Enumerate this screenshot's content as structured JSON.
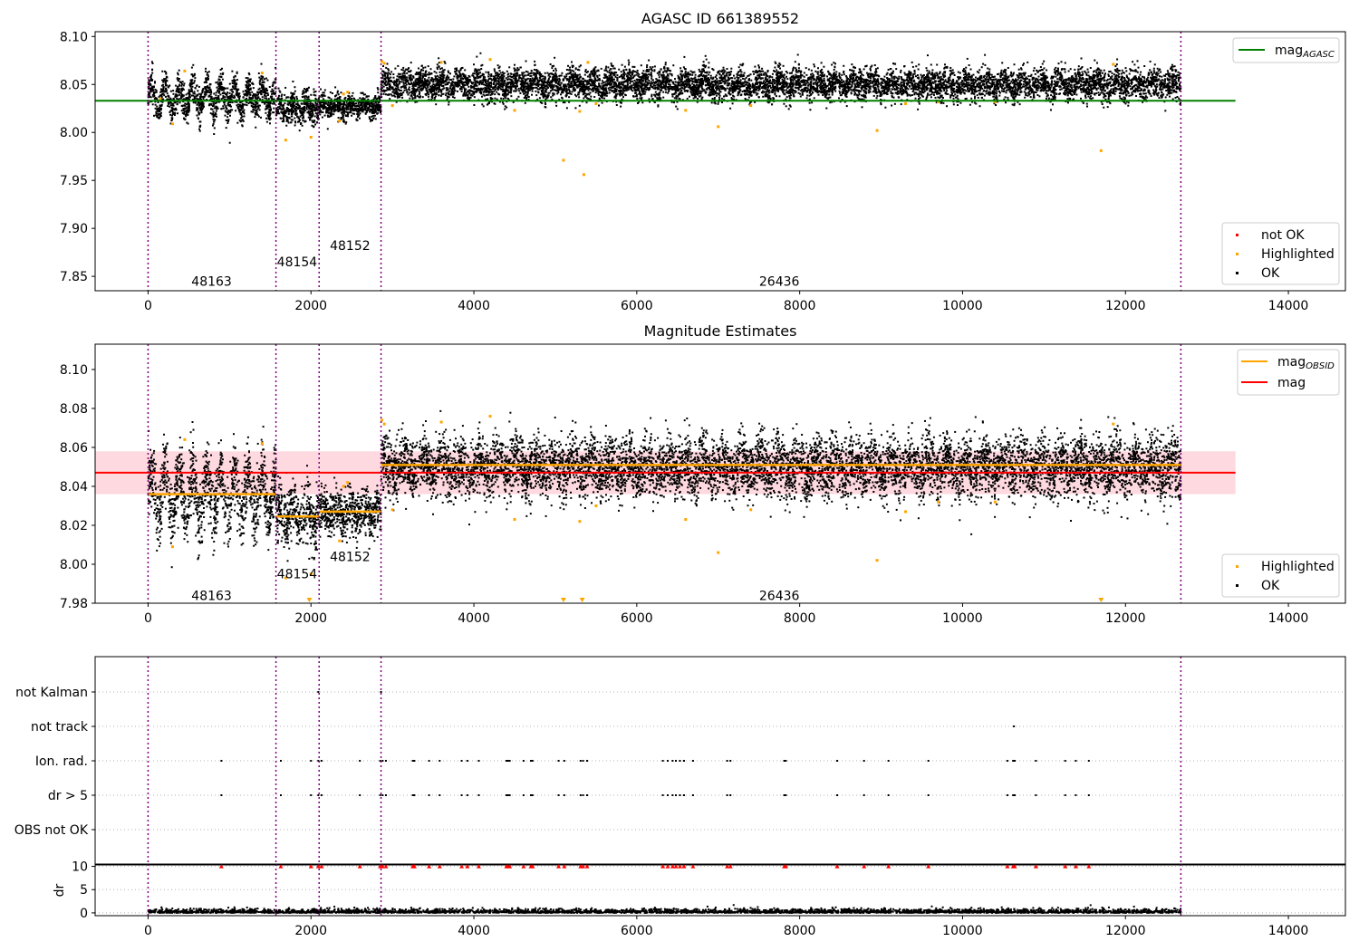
{
  "chart_data": [
    {
      "panel": "top",
      "type": "scatter",
      "title": "AGASC ID 661389552",
      "xlim": [
        -650,
        14700
      ],
      "ylim": [
        7.835,
        8.105
      ],
      "xticks": [
        "0",
        "2000",
        "4000",
        "6000",
        "8000",
        "10000",
        "12000",
        "14000"
      ],
      "yticks": [
        "7.85",
        "7.90",
        "7.95",
        "8.00",
        "8.05",
        "8.10"
      ],
      "obsid_boundaries": [
        0,
        1570,
        2100,
        2860,
        12680
      ],
      "obsid_labels": [
        {
          "text": "48163",
          "x": 780,
          "y": 7.845
        },
        {
          "text": "48154",
          "x": 1830,
          "y": 7.865
        },
        {
          "text": "48152",
          "x": 2480,
          "y": 7.882
        },
        {
          "text": "26436",
          "x": 7750,
          "y": 7.845
        }
      ],
      "lines": [
        {
          "name": "mag_AGASC",
          "color": "#008000",
          "x": [
            -650,
            13350
          ],
          "y": [
            8.033,
            8.033
          ]
        }
      ],
      "segments": [
        {
          "x0": 0,
          "x1": 1570,
          "mean": 8.036,
          "spread": 0.009,
          "osc_amp": 0.012,
          "period": 170
        },
        {
          "x0": 1570,
          "x1": 2100,
          "mean": 8.025,
          "spread": 0.008,
          "osc_amp": 0.005,
          "period": 170
        },
        {
          "x0": 2100,
          "x1": 2860,
          "mean": 8.027,
          "spread": 0.006,
          "osc_amp": 0.003,
          "period": 170
        },
        {
          "x0": 2860,
          "x1": 12680,
          "mean": 8.05,
          "spread": 0.008,
          "osc_amp": 0.004,
          "period": 230
        }
      ],
      "highlighted": [
        [
          150,
          8.035
        ],
        [
          300,
          8.009
        ],
        [
          450,
          8.064
        ],
        [
          1400,
          8.062
        ],
        [
          1690,
          7.992
        ],
        [
          2000,
          7.995
        ],
        [
          2350,
          8.012
        ],
        [
          2400,
          8.04
        ],
        [
          2450,
          8.042
        ],
        [
          2870,
          8.074
        ],
        [
          2900,
          8.072
        ],
        [
          3000,
          8.028
        ],
        [
          3600,
          8.073
        ],
        [
          4200,
          8.076
        ],
        [
          4500,
          8.023
        ],
        [
          5100,
          7.971
        ],
        [
          5300,
          8.022
        ],
        [
          5350,
          7.956
        ],
        [
          5400,
          8.073
        ],
        [
          5500,
          8.03
        ],
        [
          6600,
          8.023
        ],
        [
          7000,
          8.006
        ],
        [
          7400,
          8.028
        ],
        [
          8950,
          8.002
        ],
        [
          9300,
          8.03
        ],
        [
          9700,
          8.032
        ],
        [
          10400,
          8.032
        ],
        [
          11700,
          7.981
        ],
        [
          11850,
          8.071
        ]
      ],
      "legend_lines": [
        "mag",
        "AGASC"
      ],
      "legend_points": [
        "not OK",
        "Highlighted",
        "OK"
      ],
      "colors": {
        "ok": "#000000",
        "highlighted": "#ffa500",
        "not_ok": "#ff0000",
        "agasc": "#008000",
        "boundary": "#800080"
      }
    },
    {
      "panel": "middle",
      "type": "scatter",
      "title": "Magnitude Estimates",
      "xlim": [
        -650,
        14700
      ],
      "ylim": [
        7.98,
        8.113
      ],
      "xticks": [
        "0",
        "2000",
        "4000",
        "6000",
        "8000",
        "10000",
        "12000",
        "14000"
      ],
      "yticks": [
        "7.98",
        "8.00",
        "8.02",
        "8.04",
        "8.06",
        "8.08",
        "8.10"
      ],
      "obsid_boundaries": [
        0,
        1570,
        2100,
        2860,
        12680
      ],
      "obsid_labels": [
        {
          "text": "48163",
          "x": 780,
          "y": 7.984
        },
        {
          "text": "48154",
          "x": 1830,
          "y": 7.995
        },
        {
          "text": "48152",
          "x": 2480,
          "y": 8.004
        },
        {
          "text": "26436",
          "x": 7750,
          "y": 7.984
        }
      ],
      "obsid_means": [
        {
          "x0": 0,
          "x1": 1570,
          "y": 8.036
        },
        {
          "x0": 1570,
          "x1": 2100,
          "y": 8.0245
        },
        {
          "x0": 2100,
          "x1": 2860,
          "y": 8.027
        },
        {
          "x0": 2860,
          "x1": 12680,
          "y": 8.051
        }
      ],
      "mag": 8.047,
      "mag_band": [
        8.036,
        8.058
      ],
      "highlighted": [
        [
          300,
          8.009
        ],
        [
          450,
          8.064
        ],
        [
          1400,
          8.062
        ],
        [
          1690,
          7.993
        ],
        [
          2000,
          7.995
        ],
        [
          2350,
          8.012
        ],
        [
          2400,
          8.04
        ],
        [
          2450,
          8.042
        ],
        [
          2870,
          8.074
        ],
        [
          2900,
          8.072
        ],
        [
          3000,
          8.028
        ],
        [
          3600,
          8.073
        ],
        [
          4200,
          8.076
        ],
        [
          4500,
          8.023
        ],
        [
          5300,
          8.022
        ],
        [
          5500,
          8.03
        ],
        [
          6600,
          8.023
        ],
        [
          7000,
          8.006
        ],
        [
          7400,
          8.028
        ],
        [
          8950,
          8.002
        ],
        [
          9300,
          8.027
        ],
        [
          9700,
          8.032
        ],
        [
          10400,
          8.032
        ],
        [
          11850,
          8.072
        ]
      ],
      "below_axis_markers": [
        1980,
        5100,
        5330,
        11700
      ],
      "legend_lines": [
        "mag",
        "OBSID",
        "mag"
      ],
      "legend_points": [
        "Highlighted",
        "OK"
      ],
      "colors": {
        "ok": "#000000",
        "highlighted": "#ffa500",
        "obsid_mean": "#ffa500",
        "mag": "#ff0000",
        "band": "#ffc0cb"
      }
    },
    {
      "panel": "flags",
      "type": "scatter",
      "xlim": [
        -650,
        14700
      ],
      "categories": [
        "not Kalman",
        "not track",
        "Ion. rad.",
        "dr > 5",
        "OBS not OK"
      ],
      "obsid_boundaries": [
        0,
        1570,
        2100,
        2860,
        12680
      ],
      "flag_times": {
        "not Kalman": [
          2090,
          2860
        ],
        "not track": [
          10630
        ],
        "Ion. rad.": [
          900,
          1630,
          2000,
          2090,
          2130,
          2600,
          2850,
          2880,
          2920,
          3250,
          3270,
          3450,
          3580,
          3850,
          3920,
          4060,
          4400,
          4420,
          4440,
          4610,
          4700,
          4720,
          5040,
          5110,
          5310,
          5340,
          5390,
          6320,
          6380,
          6440,
          6480,
          6530,
          6580,
          6690,
          7110,
          7150,
          7810,
          7830,
          8460,
          8790,
          9090,
          9580,
          10550,
          10620,
          10640,
          10900,
          11260,
          11390,
          11550
        ],
        "dr > 5": [
          900,
          1630,
          2000,
          2090,
          2130,
          2600,
          2850,
          2880,
          2920,
          3250,
          3270,
          3450,
          3580,
          3850,
          3920,
          4060,
          4400,
          4420,
          4440,
          4610,
          4700,
          4720,
          5040,
          5110,
          5310,
          5340,
          5390,
          6320,
          6380,
          6440,
          6480,
          6530,
          6580,
          6690,
          7110,
          7150,
          7810,
          7830,
          8460,
          8790,
          9090,
          9580,
          10550,
          10620,
          10640,
          10900,
          11260,
          11390,
          11550
        ],
        "OBS not OK": []
      }
    },
    {
      "panel": "dr",
      "type": "scatter",
      "ylabel": "dr",
      "xlim": [
        -650,
        14700
      ],
      "ylim": [
        -0.6,
        10.5
      ],
      "xticks": [
        "0",
        "2000",
        "4000",
        "6000",
        "8000",
        "10000",
        "12000",
        "14000"
      ],
      "yticks": [
        "0",
        "5",
        "10"
      ],
      "obsid_boundaries": [
        0,
        1570,
        2100,
        2860,
        12680
      ],
      "clipped_points_at_10": [
        900,
        1630,
        2000,
        2090,
        2130,
        2600,
        2850,
        2880,
        2920,
        3250,
        3270,
        3450,
        3580,
        3850,
        3920,
        4060,
        4400,
        4420,
        4440,
        4610,
        4700,
        4720,
        5040,
        5110,
        5310,
        5340,
        5390,
        6320,
        6380,
        6440,
        6480,
        6530,
        6580,
        6690,
        7110,
        7150,
        7810,
        7830,
        8460,
        8790,
        9090,
        9580,
        10550,
        10620,
        10640,
        10900,
        11260,
        11390,
        11550
      ],
      "dr_range": [
        0,
        12680
      ],
      "dr_typical": 0.4,
      "colors": {
        "ok": "#000000",
        "clipped": "#ff0000"
      }
    }
  ]
}
